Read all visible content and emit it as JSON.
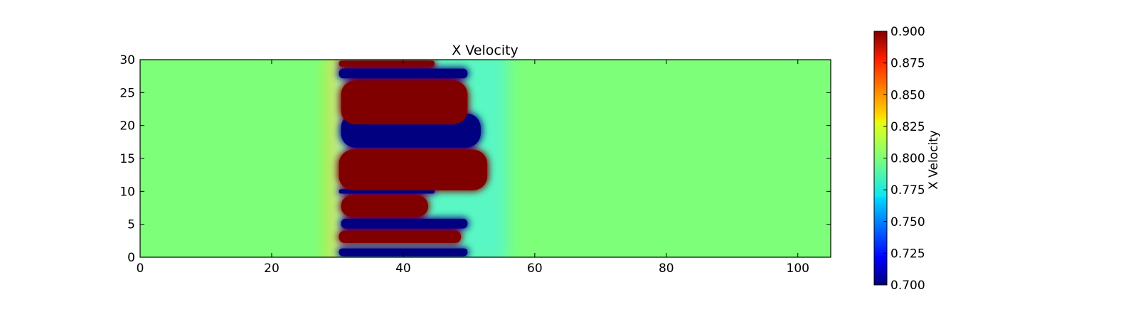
{
  "chart_data": {
    "type": "heatmap",
    "title": "X Velocity",
    "xlabel": "",
    "ylabel": "",
    "xlim": [
      0,
      105
    ],
    "ylim": [
      0,
      30
    ],
    "x_ticks": [
      0,
      20,
      40,
      60,
      80,
      100
    ],
    "y_ticks": [
      0,
      5,
      10,
      15,
      20,
      25,
      30
    ],
    "colormap": "jet",
    "colorbar": {
      "label": "X Velocity",
      "range": [
        0.7,
        0.9
      ],
      "ticks": [
        "0.700",
        "0.725",
        "0.750",
        "0.775",
        "0.800",
        "0.825",
        "0.850",
        "0.875",
        "0.900"
      ]
    },
    "background_value": 0.8,
    "mixing_zone": {
      "x_range": [
        30,
        52
      ]
    },
    "fast_bands": [
      {
        "y": [
          28.8,
          30
        ],
        "x_end": 45,
        "value": 0.9
      },
      {
        "y": [
          20,
          27
        ],
        "x_end": 50,
        "value": 0.9
      },
      {
        "y": [
          10,
          16.5
        ],
        "x_end": 53,
        "value": 0.9
      },
      {
        "y": [
          6,
          9.5
        ],
        "x_end": 44,
        "value": 0.9
      },
      {
        "y": [
          2,
          4.2
        ],
        "x_end": 49,
        "value": 0.9
      }
    ],
    "slow_bands": [
      {
        "y": [
          27,
          28.8
        ],
        "x_end": 50,
        "value": 0.7
      },
      {
        "y": [
          16.5,
          22
        ],
        "x_end": 52,
        "value": 0.7
      },
      {
        "y": [
          9.5,
          10.5
        ],
        "x_end": 45,
        "value": 0.7
      },
      {
        "y": [
          4.2,
          6
        ],
        "x_end": 50,
        "value": 0.7
      },
      {
        "y": [
          0,
          1.5
        ],
        "x_end": 50,
        "value": 0.7
      }
    ]
  }
}
